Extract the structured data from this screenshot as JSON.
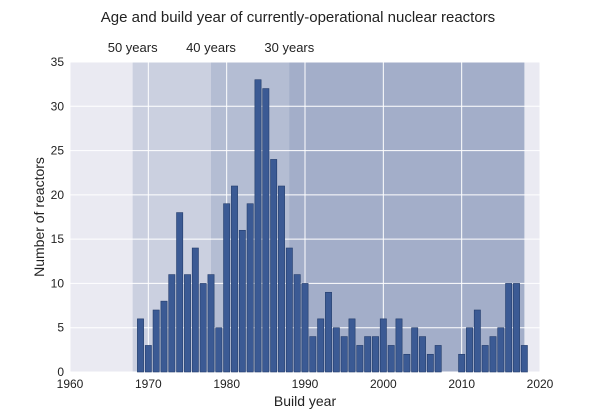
{
  "chart_data": {
    "type": "bar",
    "title": "Age and build year of currently-operational nuclear reactors",
    "xlabel": "Build year",
    "ylabel": "Number of reactors",
    "xlim": [
      1960,
      2020
    ],
    "ylim": [
      0,
      35
    ],
    "xticks": [
      1960,
      1970,
      1980,
      1990,
      2000,
      2010,
      2020
    ],
    "yticks": [
      0,
      5,
      10,
      15,
      20,
      25,
      30,
      35
    ],
    "grid": true,
    "age_bands": [
      {
        "label": "50 years",
        "start_year": 1968,
        "end_year": 2018
      },
      {
        "label": "40 years",
        "start_year": 1978,
        "end_year": 2018
      },
      {
        "label": "30 years",
        "start_year": 1988,
        "end_year": 2018
      }
    ],
    "x": [
      1969,
      1970,
      1971,
      1972,
      1973,
      1974,
      1975,
      1976,
      1977,
      1978,
      1979,
      1980,
      1981,
      1982,
      1983,
      1984,
      1985,
      1986,
      1987,
      1988,
      1989,
      1990,
      1991,
      1992,
      1993,
      1994,
      1995,
      1996,
      1997,
      1998,
      1999,
      2000,
      2001,
      2002,
      2003,
      2004,
      2005,
      2006,
      2007,
      2008,
      2009,
      2010,
      2011,
      2012,
      2013,
      2014,
      2015,
      2016,
      2017,
      2018
    ],
    "values": [
      6,
      3,
      7,
      8,
      11,
      18,
      11,
      14,
      10,
      11,
      5,
      19,
      21,
      16,
      19,
      33,
      32,
      24,
      21,
      14,
      11,
      10,
      4,
      6,
      9,
      5,
      4,
      6,
      3,
      4,
      4,
      6,
      3,
      6,
      2,
      5,
      4,
      2,
      3,
      0,
      0,
      2,
      5,
      7,
      3,
      4,
      5,
      10,
      10,
      3
    ],
    "colors": {
      "bar": "#3b5a94",
      "bar_edge": "#233c6b",
      "plot_bg": "#eaeaf2",
      "grid": "#ffffff",
      "band": "#6f83ad"
    }
  }
}
